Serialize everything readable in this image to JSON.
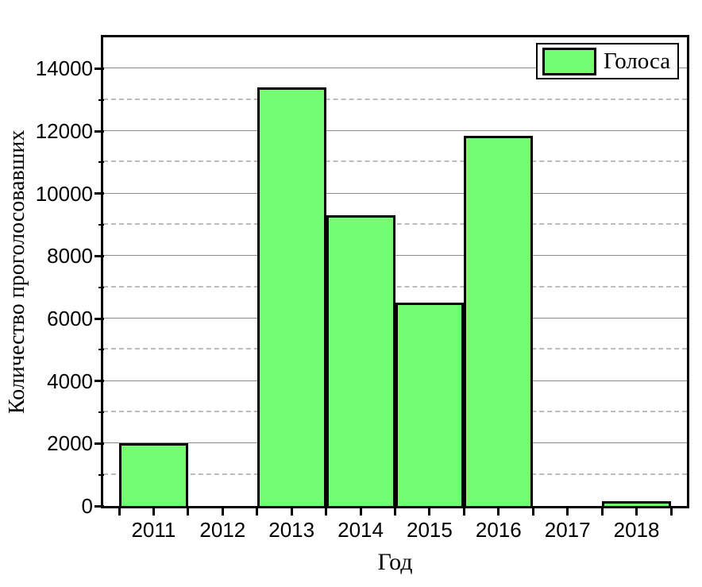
{
  "chart_data": {
    "type": "bar",
    "title": "",
    "xlabel": "Год",
    "ylabel": "Количество проголосовавших",
    "legend": [
      {
        "label": "Голоса",
        "color": "#73fd73"
      }
    ],
    "legend_position": "top-right-inside",
    "categories": [
      "2011",
      "2012",
      "2013",
      "2014",
      "2015",
      "2016",
      "2017",
      "2018"
    ],
    "series": [
      {
        "name": "Голоса",
        "values": [
          2000,
          0,
          13400,
          9300,
          6500,
          11850,
          0,
          150
        ]
      }
    ],
    "ylim": [
      0,
      15000
    ],
    "y_major_tick_step": 2000,
    "y_minor_tick_step": 1000,
    "y_tick_labels": [
      "0",
      "2000",
      "4000",
      "6000",
      "8000",
      "10000",
      "12000",
      "14000"
    ],
    "grid": "horizontal only: solid gray at major ticks, dashed light-gray at minor ticks",
    "colors": {
      "bar_fill": "#73fd73",
      "bar_border": "#000000",
      "grid_major": "#8c8c8c",
      "grid_minor": "#bcbcbc",
      "axis": "#000000",
      "text": "#000000",
      "background": "#ffffff"
    }
  }
}
